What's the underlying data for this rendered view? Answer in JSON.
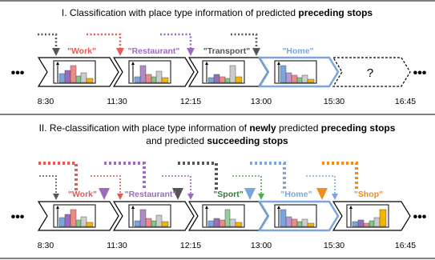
{
  "panel1": {
    "title_prefix": "I. Classification with place type information of predicted ",
    "title_bold": "preceding stops",
    "labels": [
      {
        "text": "\"Work\"",
        "color": "#e25b55"
      },
      {
        "text": "\"Restaurant\"",
        "color": "#9b6bbd"
      },
      {
        "text": "\"Transport\"",
        "color": "#555555"
      },
      {
        "text": "\"Home\"",
        "color": "#7aa6dd"
      }
    ],
    "question_mark": "?",
    "times": [
      "8:30",
      "11:30",
      "12:15",
      "13:00",
      "15:30",
      "16:45"
    ],
    "ellipsis_left": "•••",
    "ellipsis_right": "•••"
  },
  "panel2": {
    "title_line1_prefix": "II. Re-classification with place type information of ",
    "title_line1_bold1": "newly",
    "title_line1_mid": " predicted ",
    "title_line1_bold2": "preceding stops",
    "title_line2_prefix": "and predicted ",
    "title_line2_bold": "succeeding stops",
    "labels": [
      {
        "text": "\"Work\"",
        "color": "#e25b55"
      },
      {
        "text": "\"Restaurant\"",
        "color": "#9b6bbd"
      },
      {
        "text": "\"Sport\"",
        "color": "#2e7d32"
      },
      {
        "text": "\"Home\"",
        "color": "#7aa6dd"
      },
      {
        "text": "\"Shop\"",
        "color": "#f28c1e"
      }
    ],
    "times": [
      "8:30",
      "11:30",
      "12:15",
      "13:00",
      "15:30",
      "16:45"
    ],
    "ellipsis_left": "•••",
    "ellipsis_right": "•••"
  },
  "colors": {
    "red": "#e25b55",
    "purple": "#9b6bbd",
    "gray": "#555555",
    "light_gray": "#cccccc",
    "green": "#4caf50",
    "dark_green": "#2e7d32",
    "blue": "#7aa6dd",
    "orange": "#f28c1e",
    "yellow": "#f5b400"
  }
}
